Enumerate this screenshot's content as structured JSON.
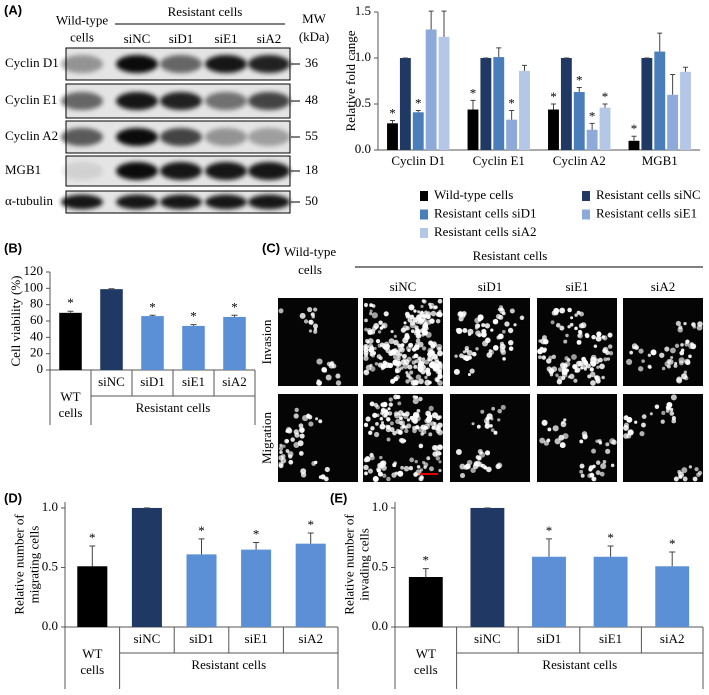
{
  "blot": {
    "panel_label": "(A)",
    "group_label": "Resistant cells",
    "lanes": [
      "Wild-type cells",
      "siNC",
      "siD1",
      "siE1",
      "siA2"
    ],
    "mw_header": "MW (kDa)",
    "rows": [
      {
        "label": "Cyclin D1",
        "mw": 36
      },
      {
        "label": "Cyclin E1",
        "mw": 48
      },
      {
        "label": "Cyclin A2",
        "mw": 55
      },
      {
        "label": "MGB1",
        "mw": 18
      },
      {
        "label": "α-tubulin",
        "mw": 50
      }
    ]
  },
  "images": {
    "panel_label": "(C)",
    "group_label": "Resistant cells",
    "lanes": [
      "Wild-type cells",
      "siNC",
      "siD1",
      "siE1",
      "siA2"
    ],
    "rows": [
      "Invasion",
      "Migration"
    ]
  },
  "chart_data": [
    {
      "type": "grouped_bar",
      "y_label": "Relative fold cange",
      "categories": [
        "Cyclin D1",
        "Cyclin E1",
        "Cyclin A2",
        "MGB1"
      ],
      "series": [
        {
          "name": "Wild-type cells",
          "color": "#000000",
          "values": [
            0.29,
            0.44,
            0.44,
            0.1
          ],
          "errors": [
            0.03,
            0.1,
            0.06,
            0.05
          ],
          "significance": [
            "*",
            "*",
            "*",
            "*"
          ]
        },
        {
          "name": "Resistant cells siNC",
          "color": "#1f3864",
          "values": [
            1,
            1,
            1,
            1
          ],
          "errors": [
            0,
            0,
            0,
            0
          ],
          "significance": [
            null,
            null,
            null,
            null
          ]
        },
        {
          "name": "Resistant cells siD1",
          "color": "#4a7ebb",
          "values": [
            0.41,
            1.01,
            0.63,
            1.07
          ],
          "errors": [
            0.02,
            0.1,
            0.05,
            0.2
          ],
          "significance": [
            "*",
            null,
            "*",
            null
          ]
        },
        {
          "name": "Resistant cells siE1",
          "color": "#8eaadb",
          "values": [
            1.31,
            0.33,
            0.22,
            0.6
          ],
          "errors": [
            0.2,
            0.1,
            0.07,
            0.22
          ],
          "significance": [
            null,
            "*",
            "*",
            null
          ]
        },
        {
          "name": "Resistant cells siA2",
          "color": "#b4c7e7",
          "values": [
            1.23,
            0.86,
            0.46,
            0.85
          ],
          "errors": [
            0.28,
            0.06,
            0.04,
            0.05
          ],
          "significance": [
            null,
            null,
            "*",
            null
          ]
        }
      ],
      "ylim": [
        0,
        1.5
      ],
      "yticks": [
        {
          "value": 0,
          "label": "0.0"
        },
        0.5,
        {
          "value": 1,
          "label": "1.0"
        },
        1.5
      ],
      "legend": "bottom"
    },
    {
      "type": "bar",
      "panel_label": "(B)",
      "y_label": "Cell viability (%)",
      "categories": [
        "WT cells",
        "siNC",
        "siD1",
        "siE1",
        "siA2"
      ],
      "group_label": "Resistant cells",
      "values": [
        70,
        99,
        66,
        54,
        65
      ],
      "errors": [
        2,
        0.5,
        1,
        1.5,
        2
      ],
      "significance": [
        "*",
        null,
        "*",
        "*",
        "*"
      ],
      "colors": [
        "#000000",
        "#1f3864",
        "#5b8fd6",
        "#5b8fd6",
        "#5b8fd6"
      ],
      "ylim": [
        0,
        120
      ],
      "yticks": [
        0,
        20,
        40,
        60,
        80,
        100,
        120
      ]
    },
    {
      "type": "bar",
      "panel_label": "(D)",
      "y_label": "Relative number of migrating cells",
      "categories": [
        "WT cells",
        "siNC",
        "siD1",
        "siE1",
        "siA2"
      ],
      "group_label": "Resistant cells",
      "values": [
        0.51,
        1.0,
        0.61,
        0.65,
        0.7
      ],
      "errors": [
        0.17,
        0,
        0.13,
        0.06,
        0.09
      ],
      "significance": [
        "*",
        null,
        "*",
        "*",
        "*"
      ],
      "colors": [
        "#000000",
        "#1f3864",
        "#5b8fd6",
        "#5b8fd6",
        "#5b8fd6"
      ],
      "ylim": [
        0,
        1.05
      ],
      "yticks": [
        {
          "value": 0,
          "label": "0.0"
        },
        0.5,
        {
          "value": 1,
          "label": "1.0"
        }
      ]
    },
    {
      "type": "bar",
      "panel_label": "(E)",
      "y_label": "Relative number of invading cells",
      "categories": [
        "WT cells",
        "siNC",
        "siD1",
        "siE1",
        "siA2"
      ],
      "group_label": "Resistant cells",
      "values": [
        0.42,
        1.0,
        0.59,
        0.59,
        0.51
      ],
      "errors": [
        0.07,
        0,
        0.15,
        0.09,
        0.12
      ],
      "significance": [
        "*",
        null,
        "*",
        "*",
        "*"
      ],
      "colors": [
        "#000000",
        "#1f3864",
        "#5b8fd6",
        "#5b8fd6",
        "#5b8fd6"
      ],
      "ylim": [
        0,
        1.05
      ],
      "yticks": [
        {
          "value": 0,
          "label": "0.0"
        },
        0.5,
        {
          "value": 1,
          "label": "1.0"
        }
      ]
    }
  ]
}
